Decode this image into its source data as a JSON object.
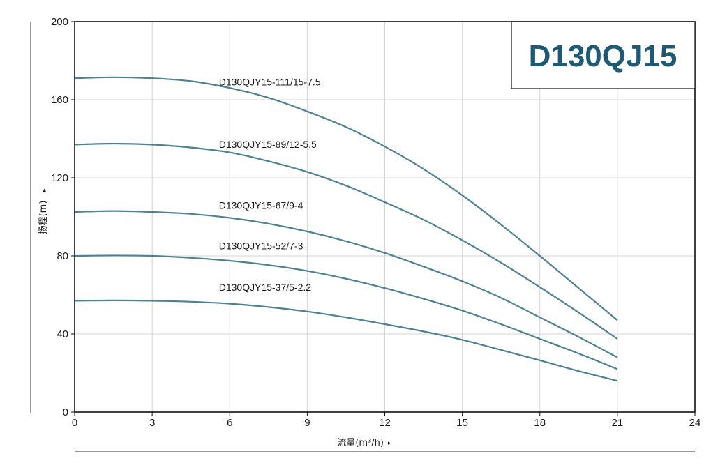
{
  "chart_data": {
    "type": "line",
    "title": "D130QJ15",
    "xlabel": "流量(m³/h)",
    "ylabel": "扬程(m)",
    "xlim": [
      0,
      24
    ],
    "ylim": [
      0,
      200
    ],
    "x_ticks": [
      0,
      3,
      6,
      9,
      12,
      15,
      18,
      21,
      24
    ],
    "y_ticks": [
      0,
      40,
      80,
      120,
      160,
      200
    ],
    "grid": true,
    "series": [
      {
        "name": "D130QJY15-111/15-7.5",
        "x": [
          0,
          1.5,
          3,
          4.5,
          6,
          7.5,
          9,
          10.5,
          12,
          13.5,
          15,
          16.5,
          18,
          19.5,
          21
        ],
        "y": [
          171,
          171.5,
          171,
          169.5,
          166,
          161,
          154,
          146,
          136,
          124.5,
          111,
          96,
          80,
          63.5,
          47
        ]
      },
      {
        "name": "D130QJY15-89/12-5.5",
        "x": [
          0,
          1.5,
          3,
          4.5,
          6,
          7.5,
          9,
          10.5,
          12,
          13.5,
          15,
          16.5,
          18,
          19.5,
          21
        ],
        "y": [
          137,
          137.5,
          137,
          135.5,
          133,
          128.5,
          123,
          116,
          107.5,
          98.5,
          88,
          76.5,
          64,
          51,
          37.5
        ]
      },
      {
        "name": "D130QJY15-67/9-4",
        "x": [
          0,
          1.5,
          3,
          4.5,
          6,
          7.5,
          9,
          10.5,
          12,
          13.5,
          15,
          16.5,
          18,
          19.5,
          21
        ],
        "y": [
          102.5,
          103,
          102.5,
          101.5,
          99.5,
          96.5,
          92.5,
          87.5,
          81.5,
          74.5,
          67,
          58.5,
          48.5,
          38.5,
          28
        ]
      },
      {
        "name": "D130QJY15-52/7-3",
        "x": [
          0,
          1.5,
          3,
          4.5,
          6,
          7.5,
          9,
          10.5,
          12,
          13.5,
          15,
          16.5,
          18,
          19.5,
          21
        ],
        "y": [
          80,
          80.2,
          80,
          79,
          77.5,
          75.3,
          72.3,
          68.3,
          63.5,
          58,
          52,
          45,
          37.5,
          30,
          22
        ]
      },
      {
        "name": "D130QJY15-37/5-2.2",
        "x": [
          0,
          1.5,
          3,
          4.5,
          6,
          7.5,
          9,
          10.5,
          12,
          13.5,
          15,
          16.5,
          18,
          19.5,
          21
        ],
        "y": [
          57,
          57.2,
          57,
          56.5,
          55.5,
          53.8,
          51.5,
          48.5,
          45,
          41.3,
          37,
          31.8,
          26.5,
          21,
          16
        ]
      }
    ]
  },
  "colors": {
    "curve": "#4e8193",
    "title_text": "#1e5a74",
    "grid": "#d4d4d4",
    "frame": "#111111"
  },
  "axis_arrow": "▸"
}
